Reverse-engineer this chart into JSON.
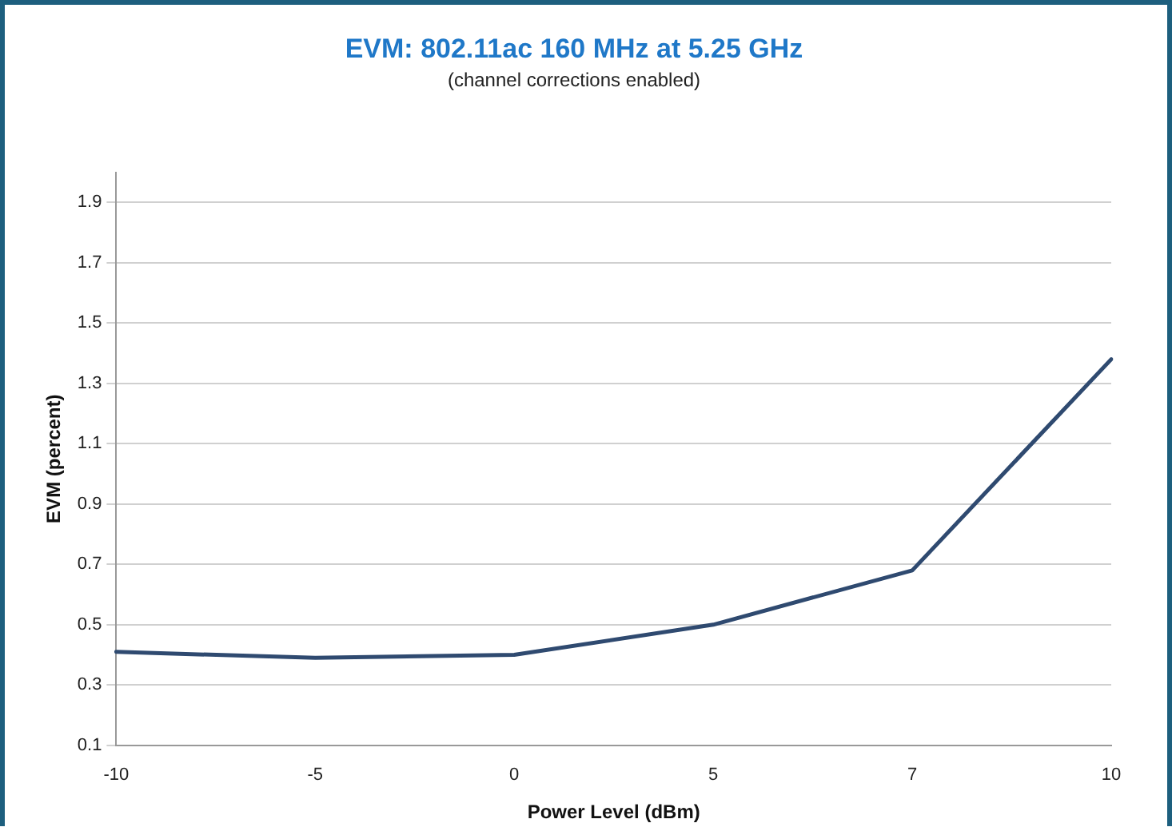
{
  "chart_data": {
    "type": "line",
    "title": "EVM: 802.11ac 160 MHz at 5.25 GHz",
    "subtitle": "(channel corrections enabled)",
    "xlabel": "Power Level (dBm)",
    "ylabel": "EVM (percent)",
    "categories": [
      "-10",
      "-5",
      "0",
      "5",
      "7",
      "10"
    ],
    "series": [
      {
        "color": "#2f4a70",
        "values": [
          0.41,
          0.39,
          0.4,
          0.5,
          0.68,
          1.38
        ]
      }
    ],
    "ylim": [
      0.1,
      2.0
    ],
    "yticks": [
      0.1,
      0.3,
      0.5,
      0.7,
      0.9,
      1.1,
      1.3,
      1.5,
      1.7,
      1.9
    ],
    "grid": "y",
    "legend": false,
    "marker": "none",
    "line_style": "solid"
  }
}
